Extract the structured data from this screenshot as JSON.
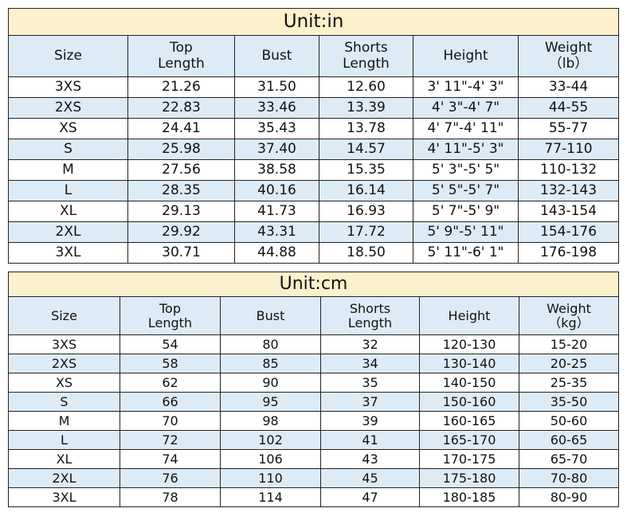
{
  "tables": [
    {
      "title": "Unit:in",
      "headers": [
        "Size",
        "Top\nLength",
        "Bust",
        "Shorts\nLength",
        "Height",
        "Weight\n（lb）"
      ],
      "rows": [
        [
          "3XS",
          "21.26",
          "31.50",
          "12.60",
          "3' 11\"-4' 3\"",
          "33-44"
        ],
        [
          "2XS",
          "22.83",
          "33.46",
          "13.39",
          "4' 3\"-4' 7\"",
          "44-55"
        ],
        [
          "XS",
          "24.41",
          "35.43",
          "13.78",
          "4' 7\"-4' 11\"",
          "55-77"
        ],
        [
          "S",
          "25.98",
          "37.40",
          "14.57",
          "4' 11\"-5' 3\"",
          "77-110"
        ],
        [
          "M",
          "27.56",
          "38.58",
          "15.35",
          "5' 3\"-5' 5\"",
          "110-132"
        ],
        [
          "L",
          "28.35",
          "40.16",
          "16.14",
          "5' 5\"-5' 7\"",
          "132-143"
        ],
        [
          "XL",
          "29.13",
          "41.73",
          "16.93",
          "5' 7\"-5' 9\"",
          "143-154"
        ],
        [
          "2XL",
          "29.92",
          "43.31",
          "17.72",
          "5' 9\"-5' 11\"",
          "154-176"
        ],
        [
          "3XL",
          "30.71",
          "44.88",
          "18.50",
          "5' 11\"-6' 1\"",
          "176-198"
        ]
      ]
    },
    {
      "title": "Unit:cm",
      "headers": [
        "Size",
        "Top\nLength",
        "Bust",
        "Shorts\nLength",
        "Height",
        "Weight\n（kg）"
      ],
      "rows": [
        [
          "3XS",
          "54",
          "80",
          "32",
          "120-130",
          "15-20"
        ],
        [
          "2XS",
          "58",
          "85",
          "34",
          "130-140",
          "20-25"
        ],
        [
          "XS",
          "62",
          "90",
          "35",
          "140-150",
          "25-35"
        ],
        [
          "S",
          "66",
          "95",
          "37",
          "150-160",
          "35-50"
        ],
        [
          "M",
          "70",
          "98",
          "39",
          "160-165",
          "50-60"
        ],
        [
          "L",
          "72",
          "102",
          "41",
          "165-170",
          "60-65"
        ],
        [
          "XL",
          "74",
          "106",
          "43",
          "170-175",
          "65-70"
        ],
        [
          "2XL",
          "76",
          "110",
          "45",
          "175-180",
          "70-80"
        ],
        [
          "3XL",
          "78",
          "114",
          "47",
          "180-185",
          "80-90"
        ]
      ]
    }
  ],
  "colors": {
    "title_bg": "#fdf0cc",
    "header_bg": "#ddebf7",
    "alt_row_bg": "#ddebf7"
  }
}
